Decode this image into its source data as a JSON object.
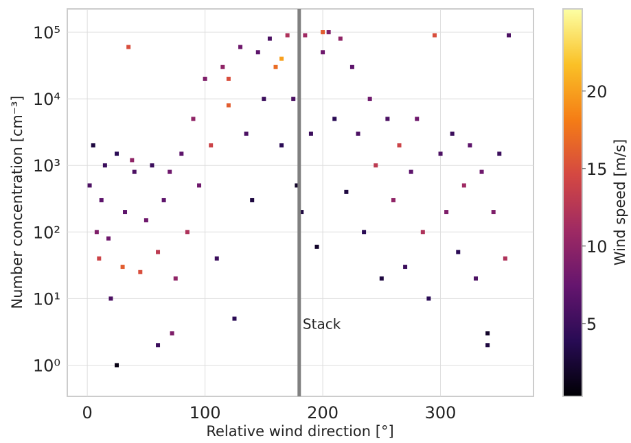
{
  "chart_data": {
    "type": "scatter",
    "x_label": "Relative wind direction [°]",
    "y_label": "Number concentration [cm⁻³]",
    "colorbar_label": "Wind speed [m/s]",
    "colormap": "inferno",
    "log_y": true,
    "grid": true,
    "xlim": [
      -17,
      379
    ],
    "xticks": [
      0,
      100,
      200,
      300
    ],
    "ylim": [
      0.34,
      224000
    ],
    "yticks": [
      {
        "value": 1,
        "label": "10⁰"
      },
      {
        "value": 10,
        "label": "10¹"
      },
      {
        "value": 100,
        "label": "10²"
      },
      {
        "value": 1000,
        "label": "10³"
      },
      {
        "value": 10000,
        "label": "10⁴"
      },
      {
        "value": 100000,
        "label": "10⁵"
      }
    ],
    "clim": [
      0.3,
      25.3
    ],
    "cticks": [
      5,
      10,
      15,
      20
    ],
    "vline_x": 180,
    "vline_color": "#808080",
    "annotation": {
      "text": "Stack",
      "x": 183,
      "y": 3.5
    },
    "x": [
      2,
      5,
      8,
      10,
      12,
      15,
      18,
      20,
      25,
      30,
      32,
      35,
      40,
      45,
      50,
      55,
      60,
      65,
      70,
      72,
      75,
      80,
      85,
      90,
      95,
      100,
      105,
      110,
      115,
      120,
      125,
      130,
      135,
      140,
      145,
      150,
      155,
      160,
      165,
      170,
      175,
      178,
      182,
      185,
      190,
      195,
      200,
      205,
      210,
      215,
      220,
      225,
      230,
      235,
      240,
      245,
      250,
      255,
      260,
      265,
      270,
      275,
      280,
      285,
      290,
      295,
      300,
      305,
      310,
      315,
      320,
      325,
      330,
      335,
      340,
      345,
      350,
      355,
      358,
      120,
      165,
      200,
      38,
      60,
      25,
      340
    ],
    "y": [
      500,
      2000,
      100,
      40,
      300,
      1000,
      80,
      10,
      1500,
      30,
      200,
      60000,
      800,
      25,
      150,
      1000,
      50,
      300,
      800,
      3,
      20,
      1500,
      100,
      5000,
      500,
      20000,
      2000,
      40,
      30000,
      8000,
      5,
      60000,
      3000,
      300,
      50000,
      10000,
      80000,
      30000,
      2000,
      90000,
      10000,
      500,
      200,
      90000,
      3000,
      60,
      50000,
      100000,
      5000,
      80000,
      400,
      30000,
      3000,
      100,
      10000,
      1000,
      20,
      5000,
      300,
      2000,
      30,
      800,
      5000,
      100,
      10,
      90000,
      1500,
      200,
      3000,
      50,
      500,
      2000,
      20,
      800,
      3,
      200,
      1500,
      40,
      90000,
      20000,
      40000,
      100000,
      1200,
      2,
      1,
      2
    ],
    "c": [
      6,
      3,
      9,
      14,
      7,
      5,
      8,
      6,
      4,
      16,
      7,
      15,
      6,
      15,
      8,
      5,
      13,
      7,
      8,
      9,
      10,
      7,
      12,
      10,
      8,
      9,
      14,
      5,
      10,
      16,
      4,
      8,
      6,
      3,
      7,
      5,
      6,
      17,
      4,
      12,
      6,
      2,
      3,
      11,
      5,
      2,
      8,
      9,
      4,
      10,
      3,
      7,
      6,
      4,
      8,
      13,
      3,
      6,
      10,
      14,
      5,
      7,
      8,
      12,
      4,
      15,
      6,
      9,
      5,
      4,
      11,
      7,
      6,
      8,
      2,
      9,
      5,
      12,
      6,
      15,
      20,
      16,
      10,
      5,
      1,
      3
    ]
  }
}
